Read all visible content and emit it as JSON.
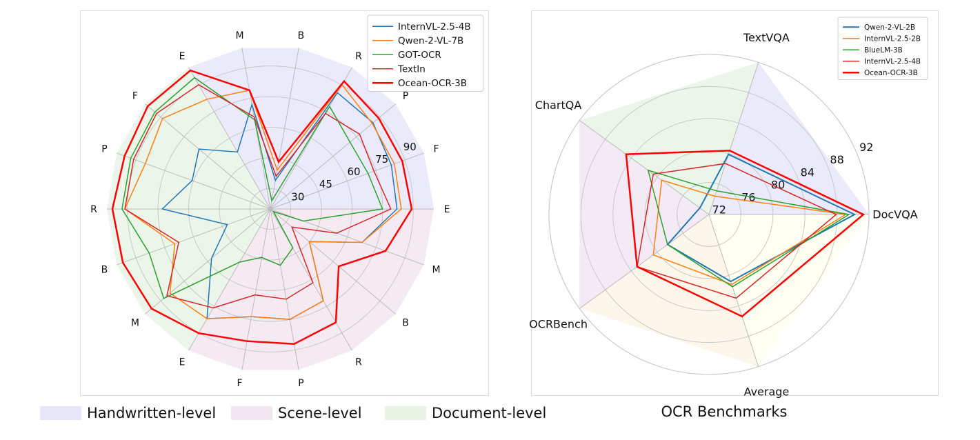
{
  "chart_data": [
    {
      "type": "radar",
      "axes": [
        "E",
        "F",
        "P",
        "R",
        "B",
        "M",
        "E",
        "F",
        "P",
        "R",
        "B",
        "M",
        "E",
        "F",
        "P",
        "R",
        "B",
        "M"
      ],
      "rlim": [
        20,
        100
      ],
      "rticks": [
        30,
        45,
        60,
        75,
        90
      ],
      "grid": true,
      "legend_placement": "top-right",
      "sectors": [
        {
          "name": "Handwritten-level",
          "from": 0,
          "to": 6,
          "color": "#e6e6fa"
        },
        {
          "name": "Document-level",
          "from": 6,
          "to": 12,
          "color": "#e8f3e6"
        },
        {
          "name": "Scene-level",
          "from": 12,
          "to": 18,
          "color": "#f3e6f0"
        }
      ],
      "series": [
        {
          "name": "InternVL-2.5-4B",
          "color": "#1f77b4",
          "width": 1.5,
          "values": [
            82,
            83,
            85.6,
            85.7,
            34.2,
            71.9,
            52.2,
            65.6,
            60.7,
            72.9,
            42.4,
            57.6,
            82,
            73.5,
            74.9,
            71.9,
            44.9,
            67.8
          ]
        },
        {
          "name": "Qwen-2-VL-7B",
          "color": "#ff7f0e",
          "width": 1.5,
          "values": [
            84.1,
            84.6,
            85.1,
            90.2,
            39.3,
            79,
            82,
            88.9,
            85.1,
            91.2,
            69.8,
            84.1,
            82,
            73.5,
            74.9,
            71.9,
            44.9,
            67.8
          ]
        },
        {
          "name": "GOT-OCR",
          "color": "#2ca02c",
          "width": 1.5,
          "values": [
            74.9,
            70.9,
            70.9,
            78,
            24.1,
            64.3,
            94.2,
            93.8,
            92.7,
            92.6,
            83.1,
            88.1,
            50,
            44.1,
            48,
            42,
            22,
            37.3
          ]
        },
        {
          "name": "TextIn",
          "color": "#d62728",
          "width": 1.5,
          "values": [
            79,
            74,
            77,
            74,
            36.3,
            65.8,
            90.2,
            92.7,
            91.2,
            91.2,
            67.7,
            86.1,
            75.9,
            62.7,
            64.8,
            61.7,
            33.8,
            54.6
          ]
        },
        {
          "name": "Ocean-OCR-3B",
          "color": "#ff0000",
          "width": 2.5,
          "values": [
            89.2,
            88.7,
            89.2,
            92.2,
            43.4,
            79,
            98.3,
            98.3,
            95.9,
            97.3,
            96.8,
            95.9,
            90.2,
            85.7,
            87.1,
            84.1,
            63.7,
            80
          ]
        }
      ]
    },
    {
      "type": "radar",
      "axes": [
        "DocVQA",
        "TextVQA",
        "ChartQA",
        "OCRBench",
        "Average"
      ],
      "rlim": [
        72,
        92
      ],
      "rticks": [
        72,
        76,
        80,
        84,
        88,
        92
      ],
      "grid": true,
      "legend_placement": "top-right",
      "sector_colors": [
        "#e6e6fa",
        "#e8f3e6",
        "#f1e6f3",
        "#fdf4e6",
        "#fffff0"
      ],
      "series": [
        {
          "name": "Qwen-2-VL-2B",
          "color": "#1f77b4",
          "width": 2,
          "values": [
            90.2,
            79.9,
            73.4,
            78.4,
            80.8
          ]
        },
        {
          "name": "InternVL-2.5-2B",
          "color": "#ff7f0e",
          "width": 1.5,
          "values": [
            89.1,
            74.4,
            79.3,
            80.6,
            81.2
          ]
        },
        {
          "name": "BlueLM-3B",
          "color": "#2ca02c",
          "width": 1.5,
          "values": [
            89.5,
            75.1,
            81.4,
            78.4,
            81.5
          ]
        },
        {
          "name": "InternVL-2.5-4B",
          "color": "#d62728",
          "width": 1.5,
          "values": [
            87.9,
            78.7,
            80.6,
            83.1,
            83
          ]
        },
        {
          "name": "Ocean-OCR-3B",
          "color": "#ff0000",
          "width": 2.5,
          "values": [
            91.3,
            80.4,
            84.8,
            83.1,
            85.4
          ]
        }
      ]
    }
  ],
  "bottom_legend": {
    "items": [
      {
        "label": "Handwritten-level",
        "color": "#e6e6fa"
      },
      {
        "label": "Scene-level",
        "color": "#f3e6f0"
      },
      {
        "label": "Document-level",
        "color": "#e8f3e6"
      }
    ],
    "benchmarks_title": "OCR Benchmarks"
  }
}
